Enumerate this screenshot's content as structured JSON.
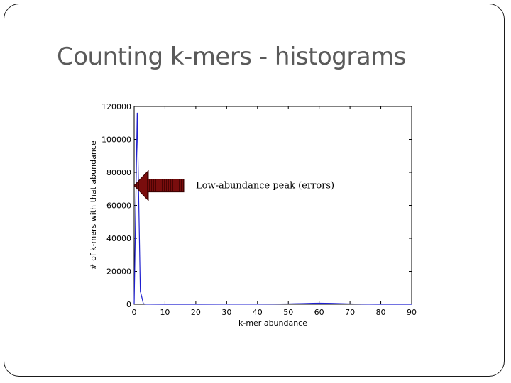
{
  "slide": {
    "title": "Counting k-mers - histograms"
  },
  "colors": {
    "line": "#1f1fd0",
    "arrow_fill": "#7a0d0d",
    "arrow_stripe": "#4a0303"
  },
  "chart_data": {
    "type": "line",
    "xlabel": "k-mer abundance",
    "ylabel": "# of k-mers with that abundance",
    "xlim": [
      0,
      90
    ],
    "ylim": [
      0,
      120000
    ],
    "xticks": [
      0,
      10,
      20,
      30,
      40,
      50,
      60,
      70,
      80,
      90
    ],
    "yticks": [
      0,
      20000,
      40000,
      60000,
      80000,
      100000,
      120000
    ],
    "grid": false,
    "series": [
      {
        "x": [
          0,
          1,
          2,
          3,
          4,
          5,
          10,
          20,
          30,
          40,
          45,
          50,
          52,
          55,
          58,
          60,
          62,
          64,
          66,
          68,
          70,
          73,
          76,
          80,
          90
        ],
        "y": [
          0,
          116000,
          8000,
          300,
          50,
          20,
          10,
          10,
          20,
          50,
          100,
          250,
          330,
          450,
          580,
          650,
          620,
          530,
          430,
          330,
          240,
          130,
          50,
          10,
          0
        ]
      }
    ],
    "annotations": [
      {
        "text": "Low-abundance peak (errors)",
        "arrow_to": [
          0,
          72000
        ]
      }
    ]
  }
}
